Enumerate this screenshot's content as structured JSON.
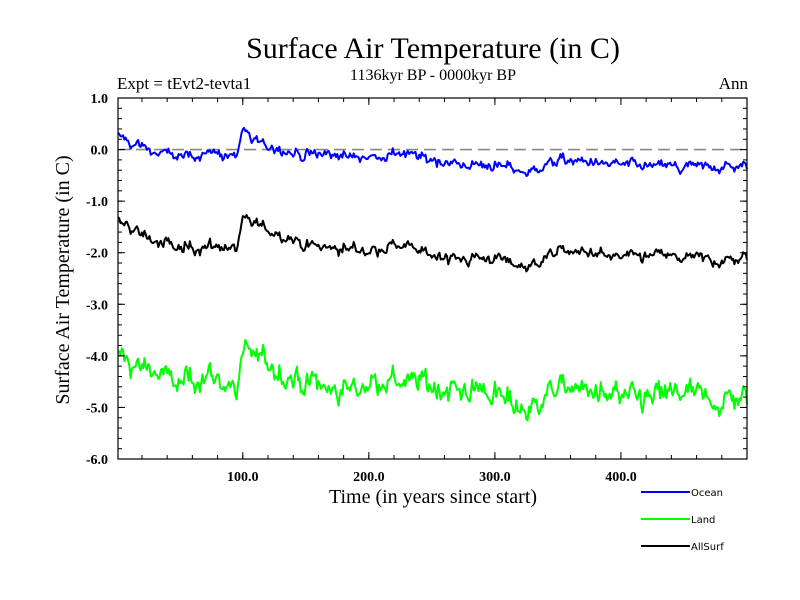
{
  "chart_data": {
    "type": "line",
    "title": "Surface Air Temperature (in C)",
    "subtitle": "1136kyr BP - 0000kyr BP",
    "expt_label": "Expt = tEvt2-tevta1",
    "season_label": "Ann",
    "xlabel": "Time (in years since start)",
    "ylabel": "Surface Air Temperature (in C)",
    "xlim": [
      1,
      500
    ],
    "ylim": [
      -6.0,
      1.0
    ],
    "x_ticks": [
      100,
      200,
      300,
      400
    ],
    "x_tick_labels": [
      "100.0",
      "200.0",
      "300.0",
      "400.0"
    ],
    "y_ticks": [
      1.0,
      0.0,
      -1.0,
      -2.0,
      -3.0,
      -4.0,
      -5.0,
      -6.0
    ],
    "y_tick_labels": [
      "1.0",
      "0.0",
      "-1.0",
      "-2.0",
      "-3.0",
      "-4.0",
      "-5.0",
      "-6.0"
    ],
    "reference_line": 0.0,
    "legend_position": "bottom-right",
    "series": [
      {
        "name": "Ocean",
        "color": "#0000ff",
        "x": [
          1,
          25,
          50,
          75,
          95,
          100,
          105,
          125,
          150,
          175,
          200,
          225,
          250,
          275,
          300,
          325,
          350,
          375,
          400,
          425,
          450,
          475,
          500
        ],
        "values": [
          0.25,
          0.0,
          -0.15,
          -0.05,
          -0.15,
          0.35,
          0.2,
          0.05,
          -0.1,
          -0.1,
          -0.15,
          -0.05,
          -0.2,
          -0.3,
          -0.3,
          -0.45,
          -0.2,
          -0.25,
          -0.3,
          -0.3,
          -0.35,
          -0.35,
          -0.3
        ]
      },
      {
        "name": "Land",
        "color": "#00ff00",
        "x": [
          1,
          25,
          50,
          75,
          95,
          100,
          105,
          125,
          150,
          175,
          200,
          225,
          250,
          275,
          300,
          325,
          350,
          375,
          400,
          425,
          450,
          475,
          500
        ],
        "values": [
          -4.0,
          -4.3,
          -4.5,
          -4.4,
          -4.6,
          -4.0,
          -3.9,
          -4.2,
          -4.5,
          -4.7,
          -4.5,
          -4.5,
          -4.6,
          -4.7,
          -4.7,
          -5.1,
          -4.6,
          -4.7,
          -4.8,
          -4.8,
          -4.7,
          -4.9,
          -4.8
        ]
      },
      {
        "name": "AllSurf",
        "color": "#000000",
        "x": [
          1,
          25,
          50,
          75,
          95,
          100,
          105,
          125,
          150,
          175,
          200,
          225,
          250,
          275,
          300,
          325,
          350,
          375,
          400,
          425,
          450,
          475,
          500
        ],
        "values": [
          -1.4,
          -1.7,
          -1.95,
          -1.85,
          -1.95,
          -1.35,
          -1.4,
          -1.6,
          -1.85,
          -1.9,
          -1.95,
          -1.85,
          -2.05,
          -2.1,
          -2.1,
          -2.3,
          -1.95,
          -2.0,
          -2.1,
          -2.05,
          -2.1,
          -2.15,
          -2.1
        ]
      }
    ]
  }
}
